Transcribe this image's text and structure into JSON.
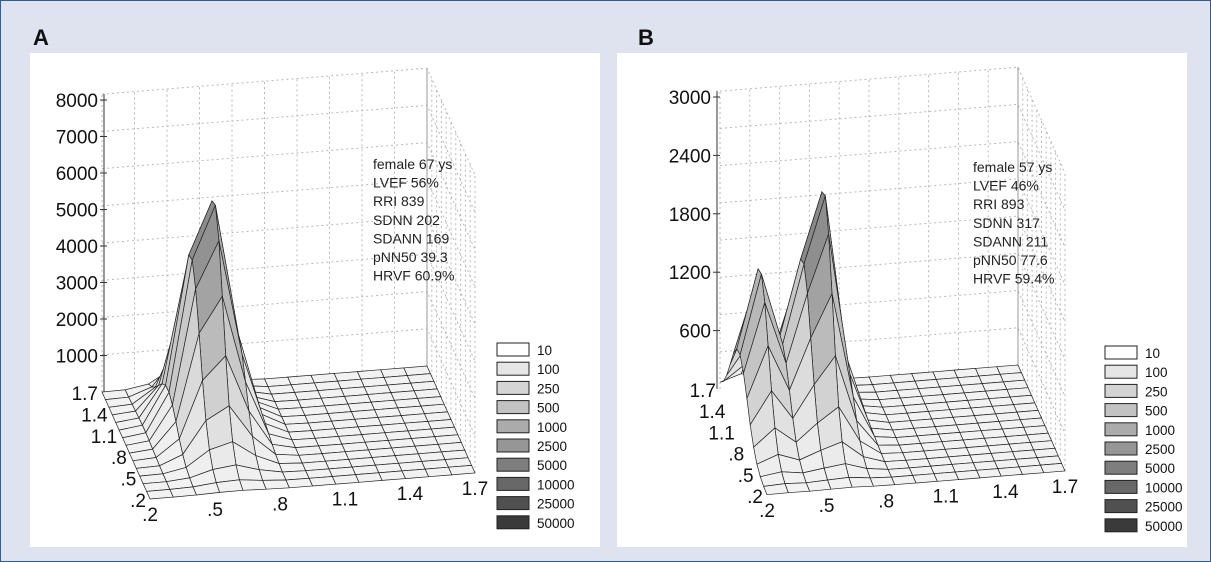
{
  "chart_data": [
    {
      "panel_label": "A",
      "type": "surface",
      "annotations": [
        "female 67 ys",
        "LVEF 56%",
        "RRI 839",
        "SDNN 202",
        "SDANN 169",
        "pNN50 39.3",
        "HRVF 60.9%"
      ],
      "zticks": [
        "8000",
        "7000",
        "6000",
        "5000",
        "4000",
        "3000",
        "2000",
        "1000"
      ],
      "zlim": [
        0,
        8000
      ],
      "xticks": [
        ".2",
        ".5",
        ".8",
        "1.1",
        "1.4",
        "1.7"
      ],
      "yticks": [
        "1.7",
        "1.4",
        "1.1",
        ".8",
        ".5",
        ".2"
      ],
      "peaks": [
        {
          "x": 0.6,
          "y": 1.1,
          "z": 6500
        }
      ],
      "legend": [
        "10",
        "100",
        "250",
        "500",
        "1000",
        "2500",
        "5000",
        "10000",
        "25000",
        "50000"
      ]
    },
    {
      "panel_label": "B",
      "type": "surface",
      "annotations": [
        "female 57 ys",
        "LVEF 46%",
        "RRI 893",
        "SDNN 317",
        "SDANN 211",
        "pNN50 77.6",
        "HRVF 59.4%"
      ],
      "zticks": [
        "3000",
        "2400",
        "1800",
        "1200",
        "600"
      ],
      "zlim": [
        0,
        3000
      ],
      "xticks": [
        ".2",
        ".5",
        ".8",
        "1.1",
        "1.4",
        "1.7"
      ],
      "yticks": [
        "1.7",
        "1.4",
        "1.1",
        ".8",
        ".5",
        ".2"
      ],
      "peaks": [
        {
          "x": 0.3,
          "y": 1.1,
          "z": 1650
        },
        {
          "x": 0.6,
          "y": 1.1,
          "z": 2550
        }
      ],
      "legend": [
        "10",
        "100",
        "250",
        "500",
        "1000",
        "2500",
        "5000",
        "10000",
        "25000",
        "50000"
      ]
    }
  ],
  "legend_colors": [
    "#ffffff",
    "#e6e6e6",
    "#d4d4d4",
    "#c2c2c2",
    "#ababab",
    "#969696",
    "#7e7e7e",
    "#686868",
    "#505050",
    "#3a3a3a"
  ]
}
